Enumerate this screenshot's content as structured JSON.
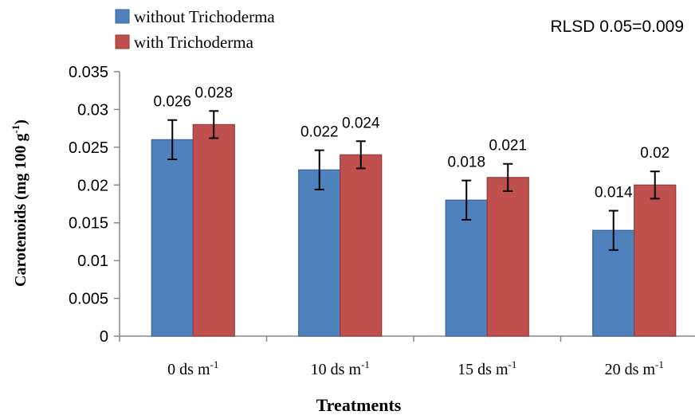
{
  "chart_data": {
    "type": "bar",
    "categories": [
      "0 ds m",
      "10 ds m",
      "15 ds m",
      "20 ds m"
    ],
    "category_superscript": "-1",
    "series": [
      {
        "name": "without Trichoderma",
        "color": "#4f81bd",
        "values": [
          0.026,
          0.022,
          0.018,
          0.014
        ],
        "error": [
          0.0026,
          0.0026,
          0.0026,
          0.0026
        ],
        "labels": [
          "0.026",
          "0.022",
          "0.018",
          "0.014"
        ]
      },
      {
        "name": "with Trichoderma",
        "color": "#c0504d",
        "values": [
          0.028,
          0.024,
          0.021,
          0.02
        ],
        "error": [
          0.0018,
          0.0018,
          0.0018,
          0.0018
        ],
        "labels": [
          "0.028",
          "0.024",
          "0.021",
          "0.02"
        ]
      }
    ],
    "xlabel": "Treatments",
    "ylabel": "Carotenoids (mg 100 g",
    "ylabel_superscript": "-1",
    "ylabel_suffix": ")",
    "ylim": [
      0,
      0.035
    ],
    "yticks": [
      0,
      0.005,
      0.01,
      0.015,
      0.02,
      0.025,
      0.03,
      0.035
    ],
    "ytick_labels": [
      "0",
      "0.005",
      "0.01",
      "0.015",
      "0.02",
      "0.025",
      "0.03",
      "0.035"
    ],
    "annotation": "RLSD 0.05=0.009",
    "legend_position": "top-left",
    "grid": false
  }
}
